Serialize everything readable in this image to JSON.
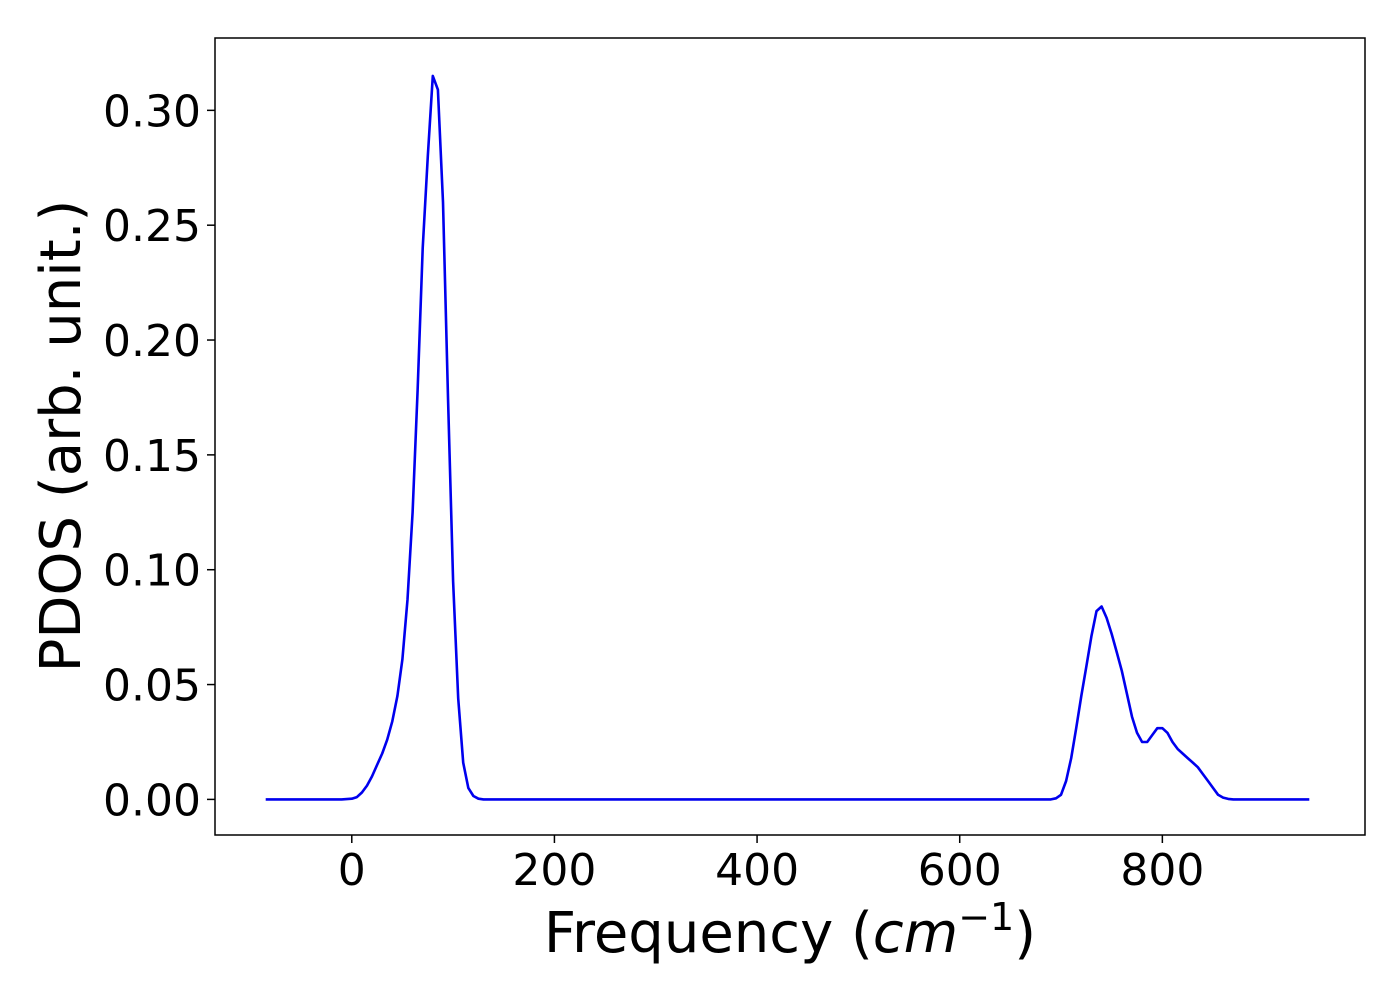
{
  "chart_data": {
    "type": "line",
    "title": "",
    "xlabel_text": "Frequency (",
    "xlabel_unit": "cm",
    "xlabel_exp": "−1",
    "xlabel_close": ")",
    "ylabel": "PDOS (arb. unit.)",
    "xlim": [
      -135,
      1000
    ],
    "ylim": [
      -0.0155,
      0.3315
    ],
    "xticks": [
      0,
      200,
      400,
      600,
      800
    ],
    "yticks": [
      0.0,
      0.05,
      0.1,
      0.15,
      0.2,
      0.25,
      0.3
    ],
    "ytick_labels": [
      "0.00",
      "0.05",
      "0.10",
      "0.15",
      "0.20",
      "0.25",
      "0.30"
    ],
    "grid": false,
    "series": [
      {
        "color": "#0000ee",
        "x": [
          -85,
          -10,
          0,
          5,
          10,
          15,
          20,
          25,
          30,
          35,
          40,
          45,
          50,
          55,
          60,
          65,
          70,
          75,
          80,
          85,
          90,
          95,
          100,
          105,
          110,
          115,
          120,
          125,
          130,
          135,
          140,
          200,
          400,
          600,
          690,
          695,
          700,
          705,
          710,
          715,
          720,
          725,
          730,
          735,
          740,
          745,
          750,
          755,
          760,
          765,
          770,
          775,
          780,
          785,
          790,
          795,
          800,
          805,
          810,
          815,
          820,
          825,
          830,
          835,
          840,
          845,
          850,
          855,
          860,
          865,
          870,
          875,
          880,
          885,
          890,
          945
        ],
        "y": [
          0.0,
          0.0,
          0.0003,
          0.001,
          0.003,
          0.006,
          0.01,
          0.015,
          0.02,
          0.026,
          0.034,
          0.045,
          0.061,
          0.087,
          0.125,
          0.178,
          0.24,
          0.28,
          0.315,
          0.309,
          0.26,
          0.175,
          0.095,
          0.044,
          0.016,
          0.005,
          0.0015,
          0.0003,
          0.0,
          0.0,
          0.0,
          0.0,
          0.0,
          0.0,
          0.0,
          0.0005,
          0.002,
          0.008,
          0.018,
          0.031,
          0.045,
          0.058,
          0.071,
          0.082,
          0.084,
          0.079,
          0.072,
          0.064,
          0.056,
          0.046,
          0.036,
          0.029,
          0.025,
          0.025,
          0.028,
          0.031,
          0.031,
          0.029,
          0.025,
          0.022,
          0.02,
          0.018,
          0.016,
          0.014,
          0.011,
          0.008,
          0.005,
          0.002,
          0.0008,
          0.0002,
          0.0,
          0.0,
          0.0,
          0.0,
          0.0,
          0.0
        ]
      }
    ]
  }
}
